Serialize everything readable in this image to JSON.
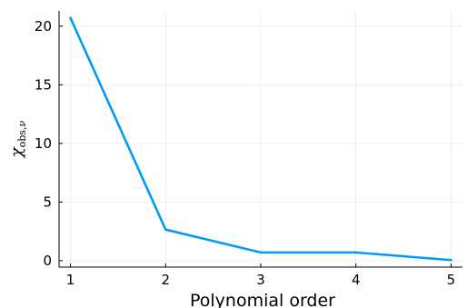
{
  "chart_data": {
    "type": "line",
    "title": "",
    "xlabel": "Polynomial order",
    "ylabel": {
      "main": "χ",
      "sub_1": "obs,",
      "sub_2": "ν"
    },
    "x": [
      1,
      2,
      3,
      4,
      5
    ],
    "series": [
      {
        "color": "#009AFA",
        "values": [
          20.7,
          2.65,
          0.7,
          0.7,
          0.05
        ]
      }
    ],
    "xticks": [
      1,
      2,
      3,
      4,
      5
    ],
    "xtick_labels": [
      "1",
      "2",
      "3",
      "4",
      "5"
    ],
    "yticks": [
      0,
      5,
      10,
      15,
      20
    ],
    "ytick_labels": [
      "0",
      "5",
      "10",
      "15",
      "20"
    ],
    "xlim": [
      0.88,
      5.12
    ],
    "ylim": [
      -0.55,
      21.3
    ],
    "grid": true,
    "legend": "none"
  }
}
